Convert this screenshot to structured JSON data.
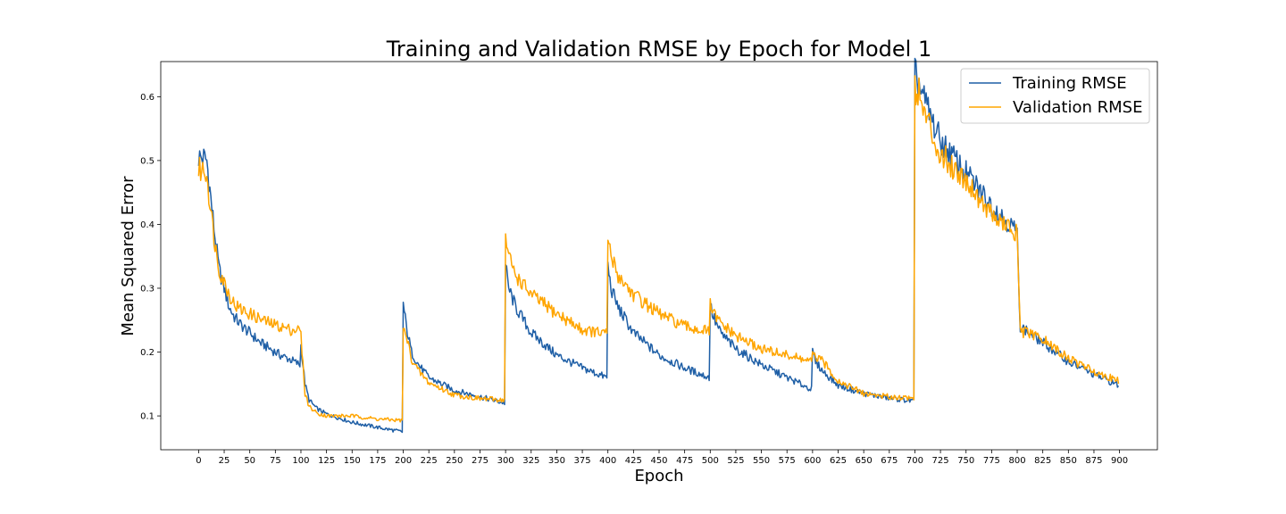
{
  "chart_data": {
    "type": "line",
    "title": "Training and Validation RMSE by Epoch for Model 1",
    "xlabel": "Epoch",
    "ylabel": "Mean Squared Error",
    "xlim": [
      -37,
      937
    ],
    "ylim": [
      0.047,
      0.655
    ],
    "xticks": [
      "0",
      "25",
      "50",
      "75",
      "100",
      "125",
      "150",
      "175",
      "200",
      "225",
      "250",
      "275",
      "300",
      "325",
      "350",
      "375",
      "400",
      "425",
      "450",
      "475",
      "500",
      "525",
      "550",
      "575",
      "600",
      "625",
      "650",
      "675",
      "700",
      "725",
      "750",
      "775",
      "800",
      "825",
      "850",
      "875",
      "900"
    ],
    "yticks": [
      "0.1",
      "0.2",
      "0.3",
      "0.4",
      "0.5",
      "0.6"
    ],
    "grid": false,
    "legend_position": "top-right",
    "series": [
      {
        "name": "Training RMSE",
        "color": "#1f5fa6",
        "x": [
          0,
          5,
          8,
          12,
          16,
          20,
          25,
          30,
          35,
          40,
          45,
          50,
          60,
          70,
          80,
          90,
          99,
          100,
          104,
          108,
          115,
          125,
          150,
          175,
          199,
          200,
          203,
          208,
          215,
          225,
          250,
          275,
          299,
          300,
          303,
          310,
          325,
          350,
          375,
          399,
          400,
          403,
          410,
          425,
          450,
          475,
          499,
          500,
          503,
          510,
          525,
          550,
          575,
          599,
          600,
          603,
          610,
          625,
          650,
          675,
          699,
          700,
          703,
          708,
          715,
          725,
          750,
          775,
          799,
          800,
          803,
          810,
          825,
          850,
          875,
          899
        ],
        "y": [
          0.505,
          0.504,
          0.5,
          0.44,
          0.38,
          0.33,
          0.3,
          0.27,
          0.255,
          0.245,
          0.237,
          0.23,
          0.215,
          0.205,
          0.195,
          0.188,
          0.18,
          0.21,
          0.15,
          0.125,
          0.112,
          0.103,
          0.09,
          0.082,
          0.075,
          0.275,
          0.24,
          0.2,
          0.18,
          0.16,
          0.14,
          0.13,
          0.12,
          0.335,
          0.3,
          0.27,
          0.23,
          0.195,
          0.175,
          0.16,
          0.335,
          0.3,
          0.27,
          0.23,
          0.195,
          0.175,
          0.16,
          0.275,
          0.255,
          0.23,
          0.205,
          0.18,
          0.16,
          0.142,
          0.2,
          0.185,
          0.17,
          0.148,
          0.135,
          0.128,
          0.123,
          0.635,
          0.625,
          0.6,
          0.57,
          0.53,
          0.48,
          0.43,
          0.39,
          0.38,
          0.24,
          0.232,
          0.215,
          0.185,
          0.165,
          0.148
        ]
      },
      {
        "name": "Validation RMSE",
        "color": "#ffa500",
        "x": [
          0,
          5,
          8,
          12,
          16,
          20,
          25,
          30,
          35,
          40,
          50,
          60,
          70,
          80,
          90,
          99,
          100,
          104,
          108,
          115,
          125,
          150,
          175,
          199,
          200,
          203,
          208,
          215,
          225,
          250,
          275,
          299,
          300,
          303,
          310,
          325,
          350,
          375,
          399,
          400,
          403,
          410,
          425,
          450,
          475,
          499,
          500,
          503,
          510,
          525,
          550,
          575,
          599,
          600,
          603,
          610,
          625,
          650,
          675,
          699,
          700,
          703,
          708,
          715,
          725,
          750,
          775,
          799,
          800,
          803,
          810,
          825,
          850,
          875,
          899
        ],
        "y": [
          0.485,
          0.485,
          0.48,
          0.42,
          0.37,
          0.33,
          0.31,
          0.29,
          0.275,
          0.268,
          0.26,
          0.252,
          0.245,
          0.24,
          0.235,
          0.235,
          0.225,
          0.135,
          0.115,
          0.105,
          0.1,
          0.1,
          0.095,
          0.093,
          0.235,
          0.225,
          0.19,
          0.17,
          0.152,
          0.133,
          0.127,
          0.125,
          0.38,
          0.35,
          0.32,
          0.29,
          0.26,
          0.235,
          0.228,
          0.38,
          0.35,
          0.32,
          0.29,
          0.26,
          0.24,
          0.232,
          0.275,
          0.26,
          0.245,
          0.225,
          0.205,
          0.195,
          0.185,
          0.195,
          0.192,
          0.185,
          0.155,
          0.135,
          0.13,
          0.128,
          0.615,
          0.61,
          0.58,
          0.55,
          0.51,
          0.47,
          0.415,
          0.385,
          0.375,
          0.232,
          0.23,
          0.22,
          0.19,
          0.17,
          0.155
        ]
      }
    ]
  }
}
